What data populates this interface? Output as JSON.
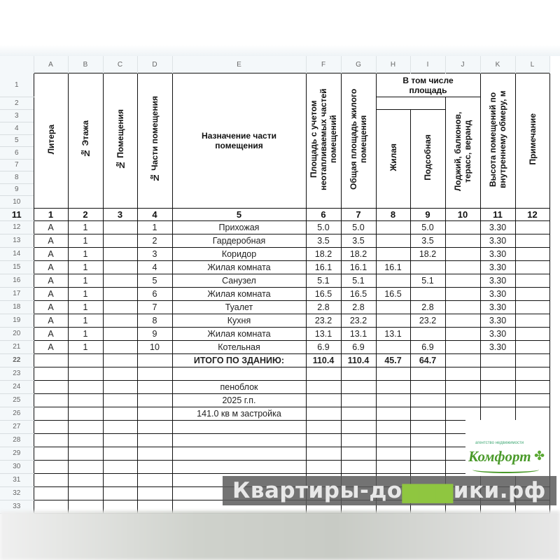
{
  "columns": [
    "A",
    "B",
    "C",
    "D",
    "E",
    "F",
    "G",
    "H",
    "I",
    "J",
    "K",
    "L"
  ],
  "header": {
    "litera": "Литера",
    "floor": "№ Этажа",
    "room_no": "№ Помещения",
    "part_no": "№ Части помещения",
    "purpose": "Назначение части помещения",
    "area_with": "Площадь с учетом неотапливаемых частей помещений",
    "total_living": "Общая площадь жилого помещения",
    "incl": "В том числе площадь",
    "living": "Жилая",
    "aux": "Подсобная",
    "loggias": "Лоджий, балконов, терасс, веранд",
    "height": "Высота помещений по внутреннему обмеру, м",
    "note": "Примечание"
  },
  "col_numbers": [
    "1",
    "2",
    "3",
    "4",
    "5",
    "6",
    "7",
    "8",
    "9",
    "10",
    "11",
    "12"
  ],
  "rows": [
    {
      "a": "А",
      "b": "1",
      "c": "",
      "d": "1",
      "e": "Прихожая",
      "f": "5.0",
      "g": "5.0",
      "h": "",
      "i": "5.0",
      "j": "",
      "k": "3.30",
      "l": ""
    },
    {
      "a": "А",
      "b": "1",
      "c": "",
      "d": "2",
      "e": "Гардеробная",
      "f": "3.5",
      "g": "3.5",
      "h": "",
      "i": "3.5",
      "j": "",
      "k": "3.30",
      "l": ""
    },
    {
      "a": "А",
      "b": "1",
      "c": "",
      "d": "3",
      "e": "Коридор",
      "f": "18.2",
      "g": "18.2",
      "h": "",
      "i": "18.2",
      "j": "",
      "k": "3.30",
      "l": ""
    },
    {
      "a": "А",
      "b": "1",
      "c": "",
      "d": "4",
      "e": "Жилая комната",
      "f": "16.1",
      "g": "16.1",
      "h": "16.1",
      "i": "",
      "j": "",
      "k": "3.30",
      "l": ""
    },
    {
      "a": "А",
      "b": "1",
      "c": "",
      "d": "5",
      "e": "Санузел",
      "f": "5.1",
      "g": "5.1",
      "h": "",
      "i": "5.1",
      "j": "",
      "k": "3.30",
      "l": ""
    },
    {
      "a": "А",
      "b": "1",
      "c": "",
      "d": "6",
      "e": "Жилая комната",
      "f": "16.5",
      "g": "16.5",
      "h": "16.5",
      "i": "",
      "j": "",
      "k": "3.30",
      "l": ""
    },
    {
      "a": "А",
      "b": "1",
      "c": "",
      "d": "7",
      "e": "Туалет",
      "f": "2.8",
      "g": "2.8",
      "h": "",
      "i": "2.8",
      "j": "",
      "k": "3.30",
      "l": ""
    },
    {
      "a": "А",
      "b": "1",
      "c": "",
      "d": "8",
      "e": "Кухня",
      "f": "23.2",
      "g": "23.2",
      "h": "",
      "i": "23.2",
      "j": "",
      "k": "3.30",
      "l": ""
    },
    {
      "a": "А",
      "b": "1",
      "c": "",
      "d": "9",
      "e": "Жилая комната",
      "f": "13.1",
      "g": "13.1",
      "h": "13.1",
      "i": "",
      "j": "",
      "k": "3.30",
      "l": ""
    },
    {
      "a": "А",
      "b": "1",
      "c": "",
      "d": "10",
      "e": "Котельная",
      "f": "6.9",
      "g": "6.9",
      "h": "",
      "i": "6.9",
      "j": "",
      "k": "3.30",
      "l": ""
    }
  ],
  "total": {
    "label": "ИТОГО ПО ЗДАНИЮ:",
    "f": "110.4",
    "g": "110.4",
    "h": "45.7",
    "i": "64.7"
  },
  "notes": [
    "",
    "пеноблок",
    "2025 г.п.",
    "141.0 кв м застройка"
  ],
  "logo": {
    "small": "агентство недвижимости",
    "name": "Комфорт"
  },
  "watermark": {
    "part1": "Квартиры-до",
    "house": "▆▆▆",
    "part2": "ики.рф"
  }
}
